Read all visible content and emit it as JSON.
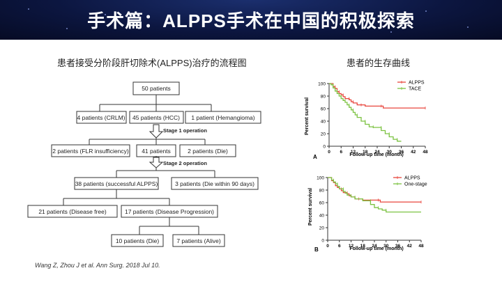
{
  "slide": {
    "title": "手术篇：ALPPS手术在中国的积极探索",
    "flow_heading": "患者接受分阶段肝切除术(ALPPS)治疗的流程图",
    "survival_heading": "患者的生存曲线",
    "citation": "Wang Z, Zhou J et al. Ann Surg. 2018 Jul 10."
  },
  "flowchart": {
    "total": "50 patients",
    "crlm": "4 patients (CRLM)",
    "hcc": "45 patients (HCC)",
    "hemangioma": "1 patient (Hemangioma)",
    "stage1": "Stage 1 operation",
    "flr": "2 patients (FLR insufficiency)",
    "p41": "41 patients",
    "die": "2 patients (Die)",
    "stage2": "Stage 2 operation",
    "successful": "38 patients (successful ALPPS)",
    "die90": "3 patients (Die within 90 days)",
    "disease_free": "21 patients (Disease free)",
    "progression": "17 patients (Disease Progression)",
    "dead10": "10 patients (Die)",
    "alive7": "7 patients (Alive)"
  },
  "colors": {
    "alpps": "#e8453c",
    "comparator": "#7cc242",
    "header_bg": "#0c1640"
  },
  "chart_data": [
    {
      "type": "line",
      "panel": "A",
      "ylabel": "Percent survival",
      "xlabel": "Follow-up time (month)",
      "xlim": [
        0,
        48
      ],
      "ylim": [
        0,
        100
      ],
      "xticks": [
        0,
        6,
        12,
        18,
        24,
        30,
        36,
        42,
        48
      ],
      "yticks": [
        0,
        20,
        40,
        60,
        80,
        100
      ],
      "legend_position": "top-right",
      "series": [
        {
          "name": "ALPPS",
          "color": "#e8453c",
          "x": [
            0,
            2,
            3,
            4,
            5,
            6,
            7,
            8,
            10,
            11,
            12,
            14,
            16,
            18,
            26,
            27,
            48
          ],
          "y": [
            100,
            95,
            92,
            87,
            84,
            82,
            79,
            76,
            74,
            71,
            69,
            66,
            66,
            64,
            64,
            61,
            61
          ]
        },
        {
          "name": "TACE",
          "color": "#7cc242",
          "x": [
            0,
            1,
            2,
            3,
            4,
            5,
            6,
            7,
            8,
            9,
            10,
            11,
            12,
            13,
            14,
            16,
            18,
            20,
            22,
            24,
            26,
            28,
            30,
            32,
            34,
            36
          ],
          "y": [
            100,
            98,
            93,
            88,
            84,
            80,
            76,
            73,
            70,
            66,
            62,
            58,
            54,
            50,
            46,
            40,
            35,
            31,
            30,
            30,
            25,
            20,
            15,
            11,
            8,
            8
          ]
        }
      ]
    },
    {
      "type": "line",
      "panel": "B",
      "ylabel": "Percent survival",
      "xlabel": "Follow-up time (month)",
      "xlim": [
        0,
        48
      ],
      "ylim": [
        0,
        100
      ],
      "xticks": [
        0,
        6,
        12,
        18,
        24,
        30,
        36,
        42,
        48
      ],
      "yticks": [
        0,
        20,
        40,
        60,
        80,
        100
      ],
      "legend_position": "top-right",
      "series": [
        {
          "name": "ALPPS",
          "color": "#e8453c",
          "x": [
            0,
            2,
            3,
            4,
            5,
            6,
            7,
            8,
            10,
            11,
            12,
            14,
            16,
            18,
            26,
            27,
            48
          ],
          "y": [
            100,
            95,
            92,
            87,
            84,
            82,
            79,
            76,
            74,
            71,
            69,
            66,
            66,
            64,
            64,
            61,
            61
          ]
        },
        {
          "name": "One-stage",
          "color": "#7cc242",
          "x": [
            0,
            2,
            3,
            4,
            5,
            6,
            8,
            9,
            10,
            12,
            14,
            18,
            22,
            24,
            26,
            28,
            30,
            48
          ],
          "y": [
            100,
            96,
            93,
            90,
            86,
            82,
            78,
            75,
            72,
            69,
            66,
            63,
            57,
            52,
            50,
            48,
            45,
            45
          ]
        }
      ]
    }
  ]
}
